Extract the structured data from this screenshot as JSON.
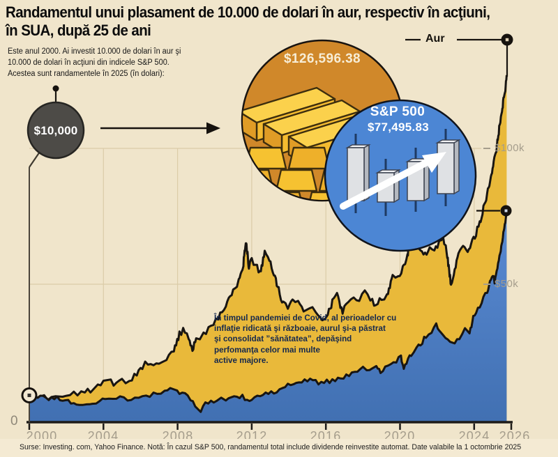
{
  "header": {
    "title_line1": "Randamentul unui plasament de 10.000 de dolari în aur, respectiv în acţiuni,",
    "title_line2": "în SUA, după 25 de ani",
    "intro_line1": "Este anul 2000. Ai investit 10.000 de dolari în aur şi",
    "intro_line2": "10.000 de dolari în acţiuni din indicele S&P 500.",
    "intro_line3": "Acestea sunt randamentele în 2025 (în dolari):"
  },
  "callouts": {
    "initial_investment": "$10,000",
    "gold_value": "$126,596.38",
    "sp500_name": "S&P 500",
    "sp500_value": "$77,495.83",
    "gold_series_label": "Aur"
  },
  "annotation": {
    "line1": "În timpul pandemiei de Covid, al perioadelor cu",
    "line2": "inflaţie ridicată şi războaie, aurul şi-a păstrat",
    "line3": "şi consolidat ”sănătatea”, depăşind",
    "line4": "perfomanţa celor mai multe",
    "line5": "active majore."
  },
  "axes": {
    "zero_label": "0",
    "y100": "$100k",
    "y50": "$50k",
    "x_ticks": [
      "2000",
      "2004",
      "2008",
      "2012",
      "2016",
      "2020",
      "2024",
      "2026"
    ]
  },
  "footer": {
    "text": "Surse: Investing. com, Yahoo Finance.   Notă: În cazul S&P 500, randamentul total include dividende reinvestite automat.  Date valabile la 1 octombrie 2025"
  },
  "colors": {
    "background": "#f0e5cb",
    "gold_fill": "#e9b93a",
    "sp_fill_top": "#5a8bd4",
    "sp_fill_bottom": "#4170b2",
    "series_line": "#181512",
    "orange_circle": "#d0882a",
    "blue_circle": "#4c86d4",
    "dark_bubble": "#4d4b47",
    "grid": "#dbcca8",
    "axis_text": "#a59d8c"
  },
  "chart_data": {
    "type": "area",
    "title": "Randamentul unui plasament de 10.000 de dolari în aur, respectiv în acţiuni, în SUA, după 25 de ani",
    "x_range": [
      2000,
      2026
    ],
    "y_unit": "thousands_usd",
    "y_ticks_k": [
      0,
      50,
      100
    ],
    "grid": true,
    "legend_position": "callout-bubbles",
    "series": [
      {
        "name": "Aur",
        "end_value_usd": 126596.38,
        "color": "#e9b93a",
        "points": [
          [
            2000,
            10
          ],
          [
            2000.3,
            10.3
          ],
          [
            2000.6,
            9.7
          ],
          [
            2001,
            9.5
          ],
          [
            2001.4,
            9.3
          ],
          [
            2001.8,
            10.1
          ],
          [
            2002.2,
            11
          ],
          [
            2002.6,
            11.5
          ],
          [
            2003,
            12.4
          ],
          [
            2003.3,
            12.1
          ],
          [
            2003.7,
            13.6
          ],
          [
            2004,
            14.4
          ],
          [
            2004.4,
            14.8
          ],
          [
            2004.7,
            14.6
          ],
          [
            2005,
            15.2
          ],
          [
            2005.4,
            15.6
          ],
          [
            2005.8,
            17.5
          ],
          [
            2006.1,
            20.2
          ],
          [
            2006.4,
            22.6
          ],
          [
            2006.7,
            21.2
          ],
          [
            2007,
            22.8
          ],
          [
            2007.4,
            23.4
          ],
          [
            2007.8,
            26.5
          ],
          [
            2008.1,
            32.5
          ],
          [
            2008.3,
            34
          ],
          [
            2008.6,
            30.5
          ],
          [
            2008.8,
            26
          ],
          [
            2009,
            31
          ],
          [
            2009.4,
            32.5
          ],
          [
            2009.8,
            35.5
          ],
          [
            2010.2,
            39
          ],
          [
            2010.6,
            43
          ],
          [
            2011,
            48.5
          ],
          [
            2011.3,
            52
          ],
          [
            2011.55,
            58
          ],
          [
            2011.7,
            66.5
          ],
          [
            2011.85,
            56.5
          ],
          [
            2012,
            60
          ],
          [
            2012.2,
            57.5
          ],
          [
            2012.45,
            54.5
          ],
          [
            2012.7,
            62
          ],
          [
            2012.95,
            59
          ],
          [
            2013.2,
            54.5
          ],
          [
            2013.45,
            48.5
          ],
          [
            2013.7,
            43.5
          ],
          [
            2013.95,
            42.5
          ],
          [
            2014.2,
            45.5
          ],
          [
            2014.5,
            44
          ],
          [
            2014.8,
            41.5
          ],
          [
            2015.1,
            42.5
          ],
          [
            2015.45,
            40.5
          ],
          [
            2015.8,
            37.5
          ],
          [
            2016.1,
            39.5
          ],
          [
            2016.35,
            44
          ],
          [
            2016.6,
            47
          ],
          [
            2016.9,
            40.5
          ],
          [
            2017.2,
            43.5
          ],
          [
            2017.5,
            44.8
          ],
          [
            2017.8,
            45.5
          ],
          [
            2018.1,
            47.5
          ],
          [
            2018.4,
            45.5
          ],
          [
            2018.7,
            42.5
          ],
          [
            2019,
            45.5
          ],
          [
            2019.3,
            46
          ],
          [
            2019.6,
            53
          ],
          [
            2019.9,
            52.5
          ],
          [
            2020.15,
            56
          ],
          [
            2020.4,
            61
          ],
          [
            2020.6,
            72.5
          ],
          [
            2020.85,
            66
          ],
          [
            2021.1,
            64
          ],
          [
            2021.35,
            61
          ],
          [
            2021.6,
            64
          ],
          [
            2021.85,
            62.5
          ],
          [
            2022.1,
            65.5
          ],
          [
            2022.3,
            68.5
          ],
          [
            2022.55,
            61
          ],
          [
            2022.75,
            50.5
          ],
          [
            2022.95,
            56
          ],
          [
            2023.15,
            61
          ],
          [
            2023.4,
            64.5
          ],
          [
            2023.65,
            61.5
          ],
          [
            2023.9,
            66
          ],
          [
            2024.1,
            69
          ],
          [
            2024.3,
            73
          ],
          [
            2024.5,
            78
          ],
          [
            2024.7,
            83
          ],
          [
            2024.9,
            89
          ],
          [
            2025.05,
            95
          ],
          [
            2025.2,
            100
          ],
          [
            2025.35,
            107
          ],
          [
            2025.5,
            113
          ],
          [
            2025.6,
            119
          ],
          [
            2025.68,
            122
          ],
          [
            2025.75,
            126.6
          ]
        ]
      },
      {
        "name": "S&P 500",
        "end_value_usd": 77495.83,
        "color": "#4c86d4",
        "points": [
          [
            2000,
            10
          ],
          [
            2000.3,
            10.4
          ],
          [
            2000.6,
            10
          ],
          [
            2000.9,
            9.4
          ],
          [
            2001.2,
            8.9
          ],
          [
            2001.5,
            9.1
          ],
          [
            2001.8,
            8.3
          ],
          [
            2002.1,
            8.5
          ],
          [
            2002.4,
            7.7
          ],
          [
            2002.7,
            6.5
          ],
          [
            2002.9,
            7
          ],
          [
            2003.1,
            6.3
          ],
          [
            2003.4,
            7.4
          ],
          [
            2003.8,
            8.3
          ],
          [
            2004.1,
            8.7
          ],
          [
            2004.5,
            8.5
          ],
          [
            2004.9,
            9.3
          ],
          [
            2005.3,
            9.2
          ],
          [
            2005.7,
            9.5
          ],
          [
            2006.1,
            10
          ],
          [
            2006.5,
            10.2
          ],
          [
            2006.9,
            11
          ],
          [
            2007.3,
            11.6
          ],
          [
            2007.6,
            12.1
          ],
          [
            2007.85,
            11.6
          ],
          [
            2008.1,
            10.7
          ],
          [
            2008.4,
            10.4
          ],
          [
            2008.7,
            9.2
          ],
          [
            2008.95,
            6.9
          ],
          [
            2009.1,
            5.8
          ],
          [
            2009.25,
            5.1
          ],
          [
            2009.5,
            6.9
          ],
          [
            2009.8,
            8
          ],
          [
            2010.1,
            8.4
          ],
          [
            2010.35,
            9
          ],
          [
            2010.6,
            8.2
          ],
          [
            2010.9,
            9.4
          ],
          [
            2011.2,
            10
          ],
          [
            2011.5,
            10.1
          ],
          [
            2011.75,
            8.5
          ],
          [
            2012,
            9.4
          ],
          [
            2012.3,
            10.4
          ],
          [
            2012.6,
            10.5
          ],
          [
            2012.9,
            10.8
          ],
          [
            2013.2,
            11.8
          ],
          [
            2013.5,
            12.4
          ],
          [
            2013.8,
            13.4
          ],
          [
            2014.1,
            14
          ],
          [
            2014.4,
            14.5
          ],
          [
            2014.7,
            15
          ],
          [
            2015,
            15.4
          ],
          [
            2015.3,
            15.6
          ],
          [
            2015.6,
            14.4
          ],
          [
            2015.9,
            15.2
          ],
          [
            2016.2,
            15.3
          ],
          [
            2016.5,
            16.1
          ],
          [
            2016.8,
            16.6
          ],
          [
            2017.1,
            17.5
          ],
          [
            2017.4,
            18.3
          ],
          [
            2017.7,
            19.2
          ],
          [
            2018,
            20.5
          ],
          [
            2018.2,
            19.8
          ],
          [
            2018.5,
            20.8
          ],
          [
            2018.72,
            21.5
          ],
          [
            2018.95,
            18.2
          ],
          [
            2019.2,
            20.8
          ],
          [
            2019.5,
            22
          ],
          [
            2019.8,
            22.9
          ],
          [
            2020.05,
            24.3
          ],
          [
            2020.2,
            19.5
          ],
          [
            2020.35,
            22
          ],
          [
            2020.6,
            25.2
          ],
          [
            2020.9,
            27.4
          ],
          [
            2021.1,
            29
          ],
          [
            2021.4,
            31.5
          ],
          [
            2021.7,
            33.5
          ],
          [
            2021.95,
            36
          ],
          [
            2022.2,
            33
          ],
          [
            2022.45,
            30.5
          ],
          [
            2022.7,
            29
          ],
          [
            2022.95,
            29.8
          ],
          [
            2023.2,
            31.5
          ],
          [
            2023.5,
            33.8
          ],
          [
            2023.75,
            33
          ],
          [
            2023.95,
            38.5
          ],
          [
            2024.1,
            41
          ],
          [
            2024.3,
            43
          ],
          [
            2024.5,
            45.5
          ],
          [
            2024.7,
            48
          ],
          [
            2024.85,
            51
          ],
          [
            2025,
            54
          ],
          [
            2025.1,
            51.5
          ],
          [
            2025.25,
            57
          ],
          [
            2025.4,
            62
          ],
          [
            2025.55,
            68
          ],
          [
            2025.65,
            72.5
          ],
          [
            2025.75,
            77.5
          ]
        ]
      }
    ]
  }
}
